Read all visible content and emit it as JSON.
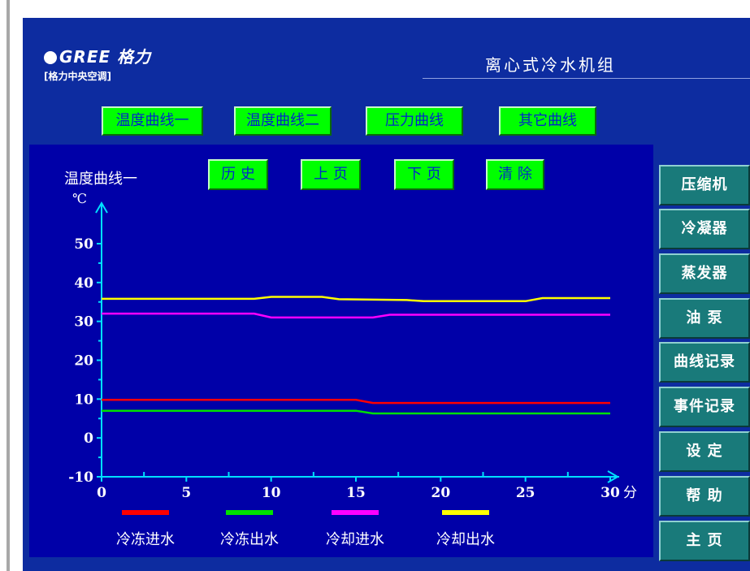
{
  "brand": {
    "logo_text": "GREE 格力",
    "subtitle": "[格力中央空调]"
  },
  "window_title": "离心式冷水机组",
  "tabs": [
    {
      "label": "温度曲线一"
    },
    {
      "label": "温度曲线二"
    },
    {
      "label": "压力曲线"
    },
    {
      "label": "其它曲线"
    }
  ],
  "chart_buttons": [
    {
      "label": "历 史"
    },
    {
      "label": "上 页"
    },
    {
      "label": "下 页"
    },
    {
      "label": "清 除"
    }
  ],
  "side_menu": [
    {
      "label": "压缩机"
    },
    {
      "label": "冷凝器"
    },
    {
      "label": "蒸发器"
    },
    {
      "label": "油 泵"
    },
    {
      "label": "曲线记录"
    },
    {
      "label": "事件记录"
    },
    {
      "label": "设 定"
    },
    {
      "label": "帮 助"
    },
    {
      "label": "主 页"
    }
  ],
  "colors": {
    "panel": "#0d2ca0",
    "chart_bg": "#0000a8",
    "accent_green": "#00ff00",
    "side_button": "#197a7a",
    "axis": "#00e0ff"
  },
  "chart_data": {
    "type": "line",
    "title": "温度曲线一",
    "ylabel": "℃",
    "xlabel_unit": "分",
    "xlim": [
      0,
      30
    ],
    "ylim": [
      -10,
      55
    ],
    "xticks": [
      0,
      5,
      10,
      15,
      20,
      25,
      30
    ],
    "xtick_labels": [
      "0",
      "5",
      "10",
      "15",
      "20",
      "25",
      "30"
    ],
    "yticks": [
      -10,
      0,
      10,
      20,
      30,
      40,
      50
    ],
    "ytick_labels": [
      "-10",
      "0",
      "10",
      "20",
      "30",
      "40",
      "50"
    ],
    "grid": false,
    "legend_position": "bottom",
    "series": [
      {
        "name": "冷冻进水",
        "color": "#ff0000",
        "x": [
          0,
          15,
          16,
          30
        ],
        "y": [
          9.8,
          9.8,
          9.0,
          9.0
        ]
      },
      {
        "name": "冷冻出水",
        "color": "#00e000",
        "x": [
          0,
          15,
          16,
          30
        ],
        "y": [
          7.0,
          7.0,
          6.3,
          6.3
        ]
      },
      {
        "name": "冷却进水",
        "color": "#ff00ff",
        "x": [
          0,
          9,
          10,
          16,
          17,
          30
        ],
        "y": [
          32.0,
          32.0,
          31.0,
          31.0,
          31.7,
          31.7
        ]
      },
      {
        "name": "冷却出水",
        "color": "#ffff00",
        "x": [
          0,
          9,
          10,
          13,
          14,
          18,
          19,
          25,
          26,
          30
        ],
        "y": [
          35.8,
          35.8,
          36.3,
          36.3,
          35.7,
          35.5,
          35.2,
          35.2,
          36.0,
          36.0
        ]
      }
    ]
  }
}
